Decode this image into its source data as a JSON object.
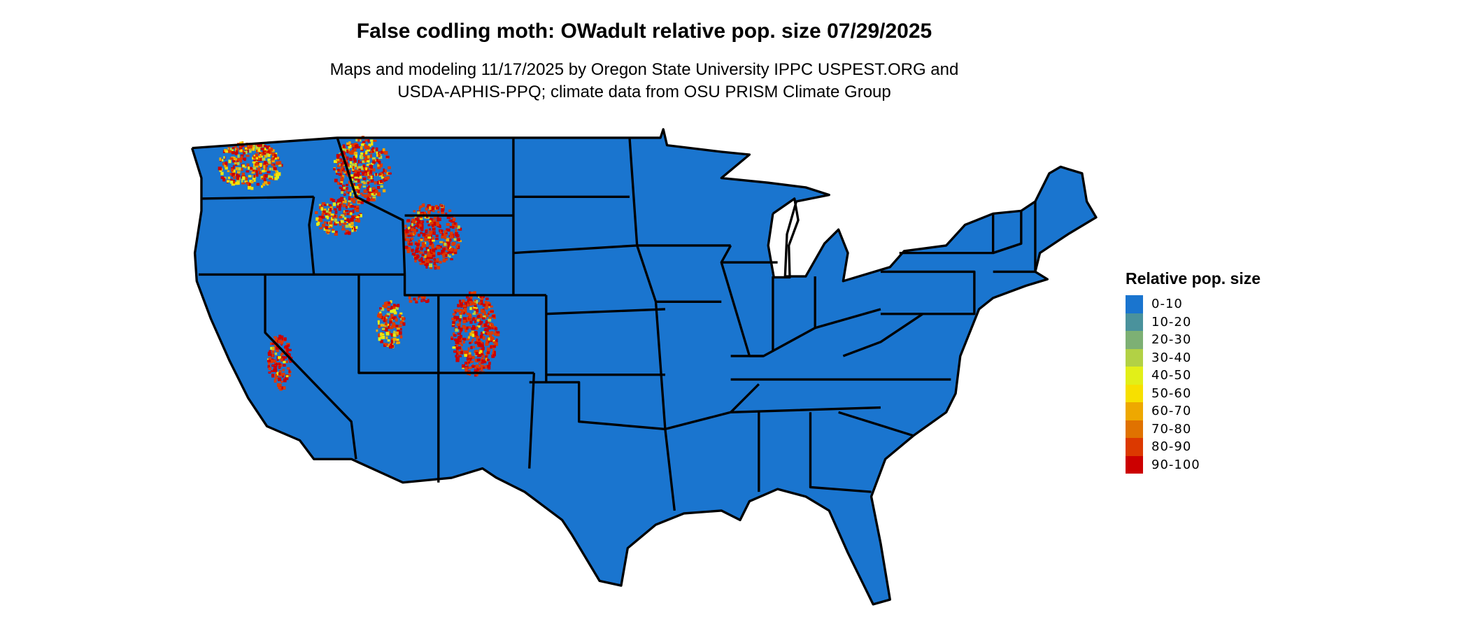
{
  "title": "False codling moth: OWadult relative pop. size 07/29/2025",
  "subtitle_line1": "Maps and modeling 11/17/2025 by Oregon State University IPPC USPEST.ORG and",
  "subtitle_line2": "USDA-APHIS-PPQ; climate data from OSU PRISM Climate Group",
  "legend": {
    "title": "Relative pop. size",
    "items": [
      {
        "label": "0-10",
        "color": "#1a75cf"
      },
      {
        "label": "10-20",
        "color": "#4a929c"
      },
      {
        "label": "20-30",
        "color": "#7db074"
      },
      {
        "label": "30-40",
        "color": "#b2d145"
      },
      {
        "label": "40-50",
        "color": "#e2ef18"
      },
      {
        "label": "50-60",
        "color": "#f7e000"
      },
      {
        "label": "60-70",
        "color": "#eea800"
      },
      {
        "label": "70-80",
        "color": "#e07200"
      },
      {
        "label": "80-90",
        "color": "#dc3900"
      },
      {
        "label": "90-100",
        "color": "#cc0000"
      }
    ]
  },
  "map": {
    "base_color": "#1a75cf",
    "border_color": "#000000"
  }
}
